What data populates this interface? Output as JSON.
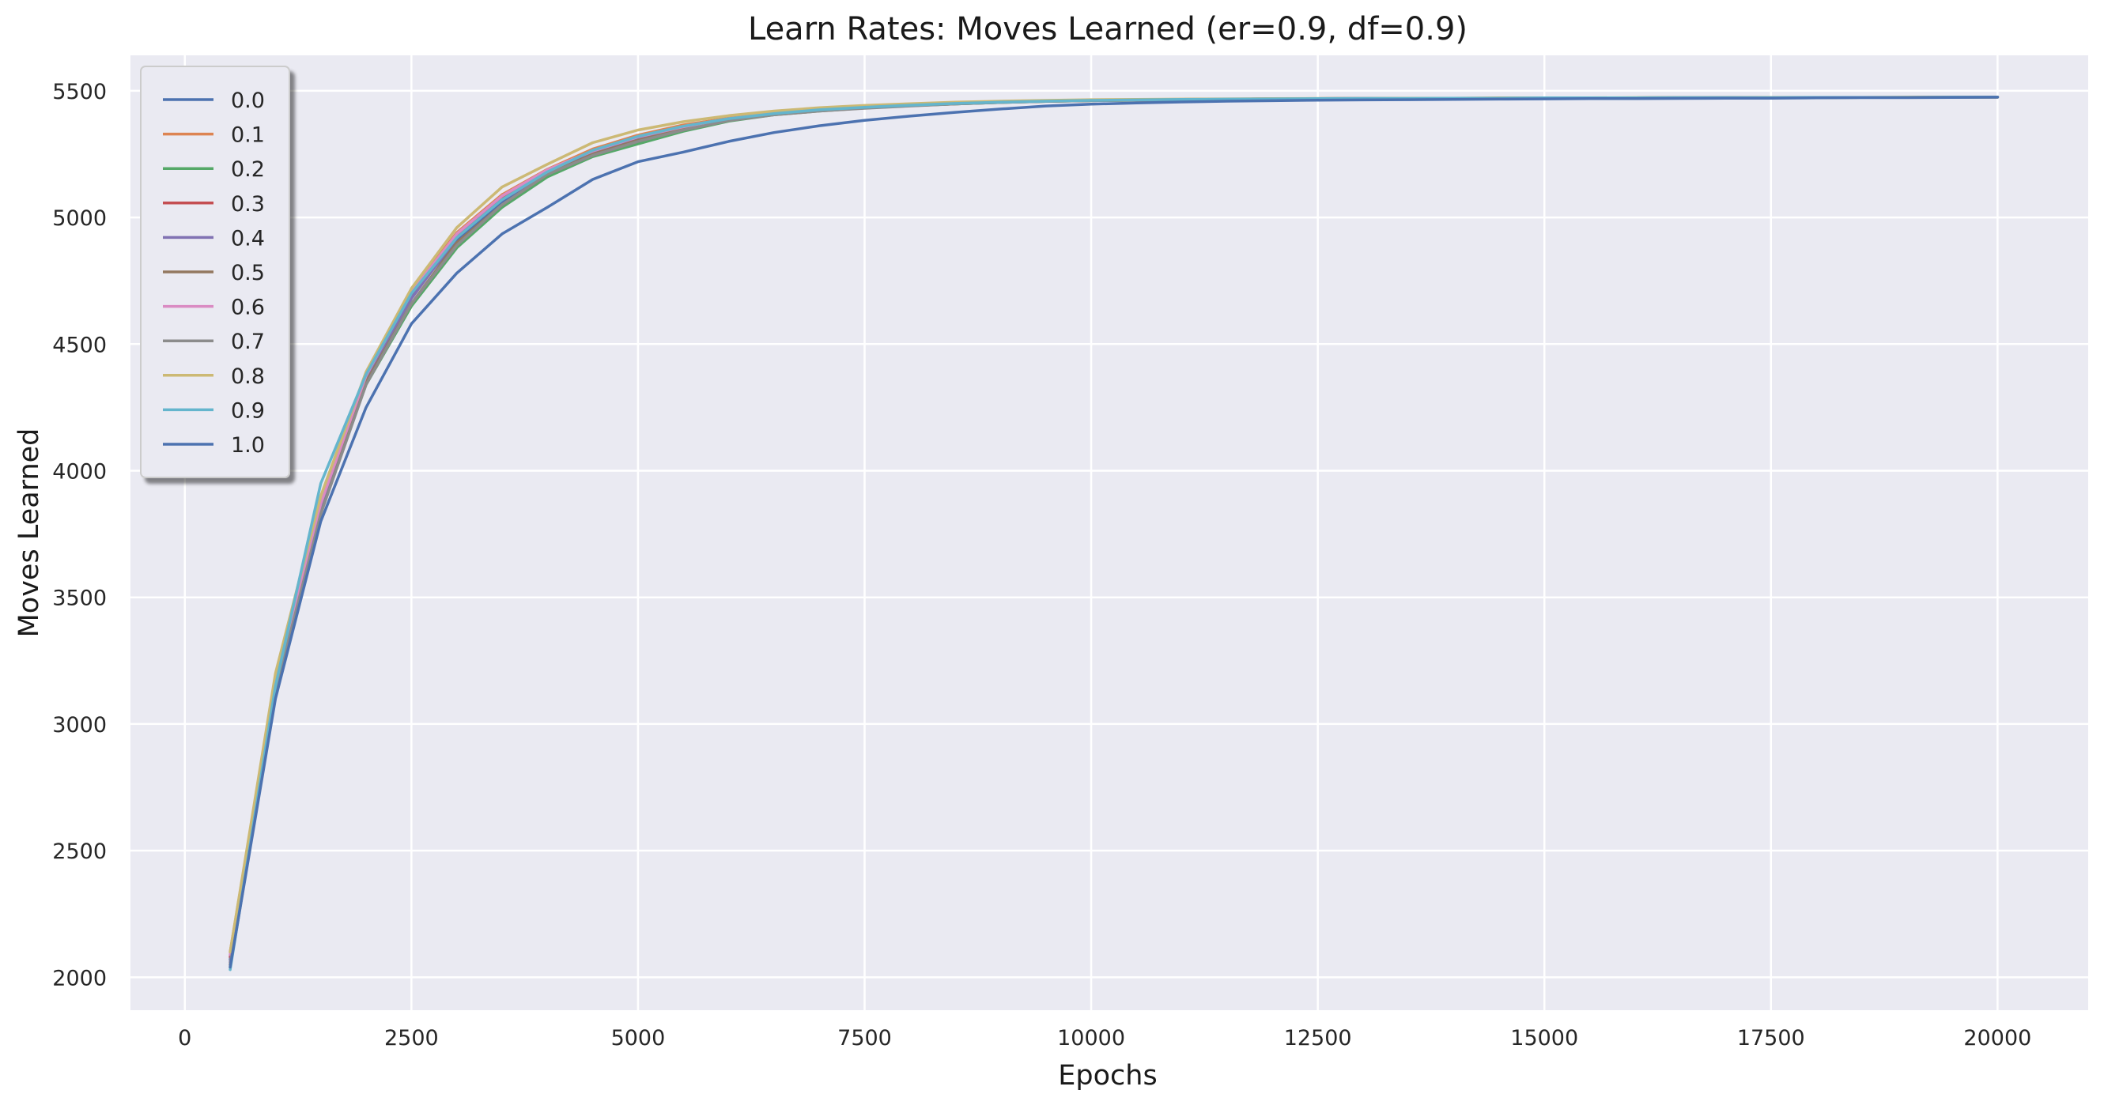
{
  "chart_data": {
    "type": "line",
    "title": "Learn Rates: Moves Learned (er=0.9, df=0.9)",
    "xlabel": "Epochs",
    "ylabel": "Moves Learned",
    "xlim": [
      -600,
      21000
    ],
    "ylim": [
      1870,
      5640
    ],
    "xticks": [
      0,
      2500,
      5000,
      7500,
      10000,
      12500,
      15000,
      17500,
      20000
    ],
    "xtick_labels": [
      "0",
      "2500",
      "5000",
      "7500",
      "10000",
      "12500",
      "15000",
      "17500",
      "20000"
    ],
    "yticks": [
      2000,
      2500,
      3000,
      3500,
      4000,
      4500,
      5000,
      5500
    ],
    "ytick_labels": [
      "2000",
      "2500",
      "3000",
      "3500",
      "4000",
      "4500",
      "5000",
      "5500"
    ],
    "grid": true,
    "legend_position": "top-left",
    "background_color": "#eaeaf2",
    "grid_color": "#ffffff",
    "x": [
      500,
      1000,
      1500,
      2000,
      2500,
      3000,
      3500,
      4000,
      4500,
      5000,
      5500,
      6000,
      6500,
      7000,
      7500,
      8000,
      8500,
      9000,
      9500,
      10000,
      10500,
      11000,
      11500,
      12000,
      12500,
      13000,
      13500,
      14000,
      14500,
      15000,
      15500,
      16000,
      16500,
      17000,
      17500,
      18000,
      18500,
      19000,
      19500,
      20000
    ],
    "series": [
      {
        "name": "0.0",
        "color": "#4c72b0",
        "values": [
          2070,
          3150,
          3870,
          4370,
          4690,
          4910,
          5060,
          5180,
          5265,
          5320,
          5360,
          5390,
          5410,
          5425,
          5435,
          5443,
          5450,
          5455,
          5459,
          5462,
          5464,
          5466,
          5467,
          5468,
          5469,
          5470,
          5470,
          5471,
          5471,
          5472,
          5472,
          5472,
          5473,
          5473,
          5473,
          5474,
          5474,
          5474,
          5475,
          5475
        ]
      },
      {
        "name": "0.1",
        "color": "#dd8452",
        "values": [
          2100,
          3180,
          3880,
          4380,
          4710,
          4940,
          5090,
          5190,
          5270,
          5325,
          5365,
          5392,
          5412,
          5427,
          5437,
          5445,
          5451,
          5456,
          5460,
          5463,
          5465,
          5466,
          5467,
          5468,
          5469,
          5470,
          5470,
          5471,
          5471,
          5472,
          5472,
          5472,
          5473,
          5473,
          5473,
          5474,
          5474,
          5474,
          5475,
          5475
        ]
      },
      {
        "name": "0.2",
        "color": "#55a868",
        "values": [
          2040,
          3120,
          3850,
          4340,
          4650,
          4880,
          5040,
          5160,
          5240,
          5290,
          5340,
          5380,
          5405,
          5420,
          5432,
          5441,
          5448,
          5454,
          5458,
          5461,
          5463,
          5465,
          5466,
          5467,
          5468,
          5469,
          5470,
          5470,
          5471,
          5471,
          5472,
          5472,
          5472,
          5473,
          5473,
          5473,
          5474,
          5474,
          5474,
          5475
        ]
      },
      {
        "name": "0.3",
        "color": "#c44e52",
        "values": [
          2080,
          3160,
          3860,
          4370,
          4700,
          4930,
          5080,
          5185,
          5260,
          5315,
          5355,
          5388,
          5410,
          5424,
          5434,
          5443,
          5450,
          5455,
          5459,
          5462,
          5464,
          5466,
          5467,
          5468,
          5469,
          5470,
          5470,
          5471,
          5471,
          5472,
          5472,
          5472,
          5473,
          5473,
          5473,
          5474,
          5474,
          5474,
          5475,
          5475
        ]
      },
      {
        "name": "0.4",
        "color": "#8172b3",
        "values": [
          2060,
          3140,
          3840,
          4360,
          4680,
          4920,
          5070,
          5175,
          5255,
          5312,
          5352,
          5386,
          5408,
          5423,
          5433,
          5442,
          5449,
          5455,
          5459,
          5462,
          5464,
          5466,
          5467,
          5468,
          5469,
          5470,
          5470,
          5471,
          5471,
          5472,
          5472,
          5472,
          5473,
          5473,
          5473,
          5474,
          5474,
          5474,
          5475,
          5475
        ]
      },
      {
        "name": "0.5",
        "color": "#937860",
        "values": [
          2050,
          3130,
          3830,
          4350,
          4660,
          4900,
          5050,
          5170,
          5250,
          5305,
          5348,
          5384,
          5406,
          5421,
          5432,
          5441,
          5448,
          5454,
          5458,
          5461,
          5463,
          5465,
          5466,
          5467,
          5468,
          5469,
          5470,
          5470,
          5471,
          5471,
          5472,
          5472,
          5472,
          5473,
          5473,
          5473,
          5474,
          5474,
          5474,
          5475
        ]
      },
      {
        "name": "0.6",
        "color": "#da8bc3",
        "values": [
          2090,
          3170,
          3870,
          4375,
          4705,
          4935,
          5085,
          5188,
          5262,
          5318,
          5358,
          5390,
          5411,
          5425,
          5435,
          5443,
          5450,
          5455,
          5459,
          5462,
          5464,
          5466,
          5467,
          5468,
          5469,
          5470,
          5470,
          5471,
          5471,
          5472,
          5472,
          5472,
          5473,
          5473,
          5473,
          5474,
          5474,
          5474,
          5475,
          5475
        ]
      },
      {
        "name": "0.7",
        "color": "#8c8c8c",
        "values": [
          2050,
          3130,
          3830,
          4340,
          4660,
          4890,
          5050,
          5170,
          5245,
          5300,
          5345,
          5382,
          5405,
          5420,
          5431,
          5440,
          5448,
          5454,
          5458,
          5461,
          5463,
          5465,
          5466,
          5467,
          5468,
          5469,
          5470,
          5470,
          5471,
          5471,
          5472,
          5472,
          5472,
          5473,
          5473,
          5473,
          5474,
          5474,
          5474,
          5475
        ]
      },
      {
        "name": "0.8",
        "color": "#ccb974",
        "values": [
          2100,
          3200,
          3900,
          4390,
          4720,
          4960,
          5120,
          5210,
          5295,
          5345,
          5378,
          5402,
          5420,
          5433,
          5442,
          5449,
          5455,
          5459,
          5462,
          5465,
          5466,
          5467,
          5468,
          5469,
          5470,
          5470,
          5471,
          5471,
          5472,
          5472,
          5472,
          5473,
          5473,
          5473,
          5474,
          5474,
          5474,
          5475,
          5475,
          5475
        ]
      },
      {
        "name": "0.9",
        "color": "#64b5cd",
        "values": [
          2030,
          3150,
          3950,
          4380,
          4700,
          4920,
          5070,
          5180,
          5265,
          5320,
          5360,
          5390,
          5410,
          5425,
          5435,
          5443,
          5450,
          5455,
          5459,
          5462,
          5464,
          5466,
          5467,
          5468,
          5469,
          5470,
          5470,
          5471,
          5471,
          5472,
          5472,
          5472,
          5473,
          5473,
          5473,
          5474,
          5474,
          5474,
          5475,
          5475
        ]
      },
      {
        "name": "1.0",
        "color": "#4c72b0",
        "values": [
          2040,
          3100,
          3800,
          4250,
          4580,
          4780,
          4935,
          5040,
          5150,
          5220,
          5258,
          5300,
          5335,
          5362,
          5383,
          5400,
          5415,
          5428,
          5440,
          5447,
          5452,
          5456,
          5459,
          5461,
          5463,
          5464,
          5465,
          5466,
          5467,
          5468,
          5469,
          5469,
          5470,
          5471,
          5471,
          5472,
          5473,
          5473,
          5474,
          5475
        ]
      }
    ]
  }
}
